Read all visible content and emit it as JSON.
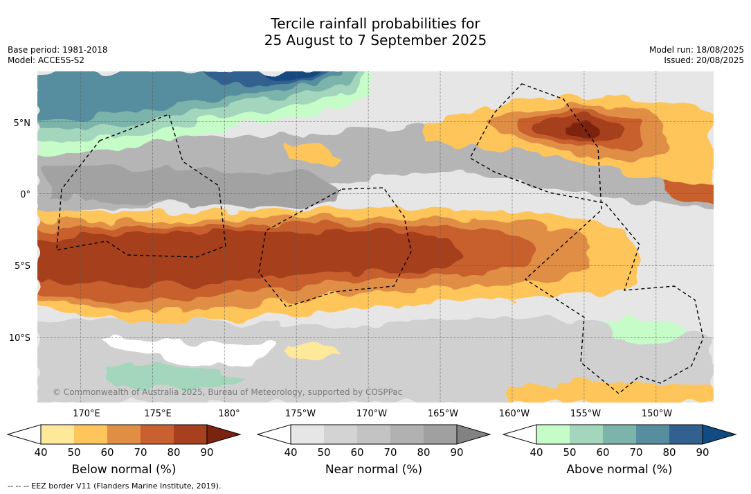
{
  "title": {
    "line1": "Tercile rainfall probabilities for",
    "line2": "25 August to 7 September 2025"
  },
  "meta": {
    "base_period": "Base period: 1981-2018",
    "model": "Model: ACCESS-S2",
    "model_run": "Model run: 18/08/2025",
    "issued": "Issued: 20/08/2025"
  },
  "map": {
    "lon_range": [
      167,
      214
    ],
    "lat_range": [
      -14.5,
      8.5
    ],
    "lat_labels": [
      {
        "lat": 5,
        "label": "5°N"
      },
      {
        "lat": 0,
        "label": "0°"
      },
      {
        "lat": -5,
        "label": "5°S"
      },
      {
        "lat": -10,
        "label": "10°S"
      }
    ],
    "lon_labels": [
      {
        "lon": 170,
        "label": "170°E"
      },
      {
        "lon": 175,
        "label": "175°E"
      },
      {
        "lon": 180,
        "label": "180°"
      },
      {
        "lon": 185,
        "label": "175°W"
      },
      {
        "lon": 190,
        "label": "170°W"
      },
      {
        "lon": 195,
        "label": "165°W"
      },
      {
        "lon": 200,
        "label": "160°W"
      },
      {
        "lon": 205,
        "label": "155°W"
      },
      {
        "lon": 210,
        "label": "150°W"
      }
    ],
    "credit": "© Commonwealth of Australia 2025, Bureau of Meteorology, supported by COSPPac"
  },
  "colorbars": [
    {
      "label": "Below normal (%)",
      "ticks": [
        "40",
        "50",
        "60",
        "70",
        "80",
        "90"
      ],
      "colors": [
        "#ffffff",
        "#fee99b",
        "#fec55a",
        "#e08e44",
        "#c8612f",
        "#a6401f",
        "#7b2311"
      ]
    },
    {
      "label": "Near normal (%)",
      "ticks": [
        "40",
        "50",
        "60",
        "70",
        "80",
        "90"
      ],
      "colors": [
        "#ffffff",
        "#e6e6e6",
        "#d3d3d3",
        "#c3c3c3",
        "#b1b1b1",
        "#a0a0a0",
        "#828282"
      ]
    },
    {
      "label": "Above normal (%)",
      "ticks": [
        "40",
        "50",
        "60",
        "70",
        "80",
        "90"
      ],
      "colors": [
        "#ffffff",
        "#c6fcc8",
        "#a3d6bd",
        "#7cb3aa",
        "#578e9f",
        "#32608f",
        "#124a82"
      ]
    }
  ],
  "footnote": "--  --  -- EEZ border V11 (Flanders Marine Institute, 2019)."
}
